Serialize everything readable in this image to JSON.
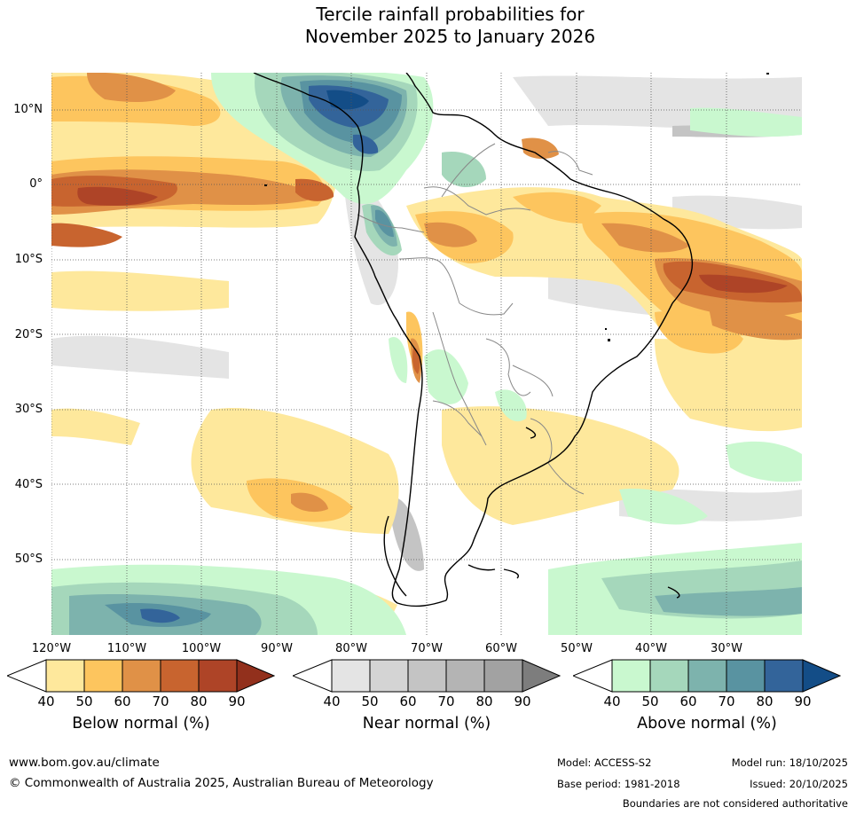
{
  "title": {
    "line1": "Tercile rainfall probabilities for",
    "line2": "November 2025 to January 2026"
  },
  "map": {
    "lat_labels": [
      "10°N",
      "0°",
      "10°S",
      "20°S",
      "30°S",
      "40°S",
      "50°S"
    ],
    "lon_labels": [
      "120°W",
      "110°W",
      "100°W",
      "90°W",
      "80°W",
      "70°W",
      "60°W",
      "50°W",
      "40°W",
      "30°W"
    ]
  },
  "colorbars": {
    "below": {
      "title": "Below normal (%)",
      "ticks": [
        "40",
        "50",
        "60",
        "70",
        "80",
        "90"
      ],
      "colors": [
        "#ffffff",
        "#fee89c",
        "#fdc55e",
        "#e09147",
        "#c8642f",
        "#ae4427",
        "#92301c"
      ]
    },
    "near": {
      "title": "Near normal (%)",
      "ticks": [
        "40",
        "50",
        "60",
        "70",
        "80",
        "90"
      ],
      "colors": [
        "#ffffff",
        "#e4e4e4",
        "#d4d4d4",
        "#c4c4c4",
        "#b4b4b4",
        "#a2a2a2",
        "#7d7d7d"
      ]
    },
    "above": {
      "title": "Above normal (%)",
      "ticks": [
        "40",
        "50",
        "60",
        "70",
        "80",
        "90"
      ],
      "colors": [
        "#ffffff",
        "#c9f8cf",
        "#a5d7bb",
        "#7db3ad",
        "#5993a1",
        "#33649a",
        "#134d87"
      ]
    }
  },
  "footer": {
    "website": "www.bom.gov.au/climate",
    "copyright": "© Commonwealth of Australia 2025, Australian Bureau of Meteorology",
    "model": "Model: ACCESS-S2",
    "base_period": "Base period: 1981-2018",
    "model_run": "Model run: 18/10/2025",
    "issued": "Issued: 20/10/2025",
    "disclaimer": "Boundaries are not considered authoritative"
  }
}
